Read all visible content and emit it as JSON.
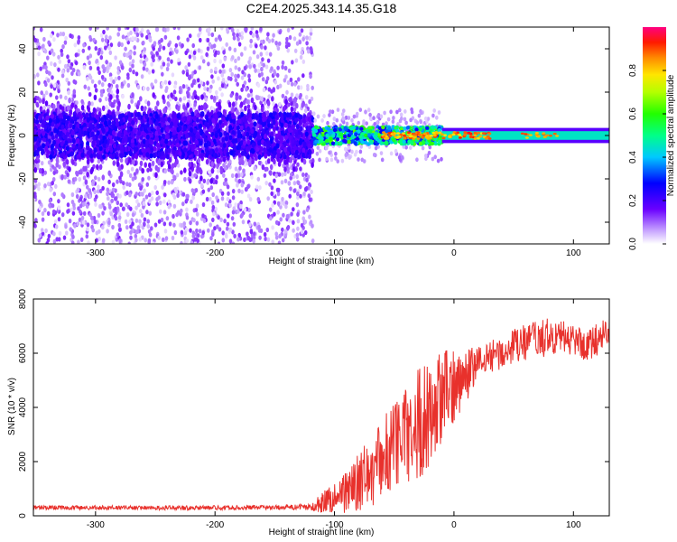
{
  "title": "C2E4.2025.343.14.35.G18",
  "chart_data": [
    {
      "type": "heatmap",
      "title": "C2E4.2025.343.14.35.G18",
      "xlabel": "Height of straight line (km)",
      "ylabel": "Frequency (Hz)",
      "xlim": [
        -352,
        130
      ],
      "ylim": [
        -50,
        50
      ],
      "xticks": [
        -300,
        -200,
        -100,
        0,
        100
      ],
      "yticks": [
        -40,
        -20,
        0,
        20,
        40
      ],
      "xtick_labels": [
        "-300",
        "-200",
        "-100",
        "0",
        "100"
      ],
      "ytick_labels": [
        "-40",
        "-20",
        "0",
        "20",
        "40"
      ],
      "colorbar": {
        "label": "Normalized spectral amplitude",
        "range": [
          0,
          1
        ],
        "ticks": [
          0.0,
          0.2,
          0.4,
          0.6,
          0.8
        ],
        "tick_labels": [
          "0.0",
          "0.2",
          "0.4",
          "0.6",
          "0.8"
        ],
        "colormap": "rainbow (white-violet-blue-cyan-green-yellow-red-magenta)"
      },
      "features": [
        {
          "name": "broad noisy band",
          "x_range": [
            -352,
            -118
          ],
          "center_freq": 0,
          "core_halfwidth": 10,
          "spread_halfwidth": 50,
          "dominant_amplitude": 0.2
        },
        {
          "name": "transition region",
          "x_range": [
            -118,
            -10
          ],
          "center_freq": 0,
          "core_halfwidth": 4,
          "dominant_amplitude": 0.5
        },
        {
          "name": "narrow carrier line",
          "x_range": [
            -10,
            130
          ],
          "center_freq": 0,
          "core_halfwidth": 2,
          "dominant_amplitude": 0.45
        }
      ]
    },
    {
      "type": "line",
      "xlabel": "Height of straight line (km)",
      "ylabel": "SNR (10 * v/v)",
      "xlim": [
        -352,
        130
      ],
      "ylim": [
        0,
        8000
      ],
      "xticks": [
        -300,
        -200,
        -100,
        0,
        100
      ],
      "yticks": [
        0,
        2000,
        4000,
        6000,
        8000
      ],
      "xtick_labels": [
        "-300",
        "-200",
        "-100",
        "0",
        "100"
      ],
      "ytick_labels": [
        "0",
        "2000",
        "4000",
        "6000",
        "8000"
      ],
      "color": "#e8312c",
      "series": [
        {
          "name": "SNR",
          "x": [
            -350,
            -300,
            -250,
            -200,
            -150,
            -120,
            -110,
            -100,
            -90,
            -80,
            -70,
            -60,
            -50,
            -40,
            -30,
            -20,
            -10,
            0,
            10,
            20,
            30,
            40,
            50,
            60,
            70,
            80,
            90,
            100,
            110,
            120,
            130
          ],
          "values": [
            300,
            300,
            290,
            300,
            310,
            320,
            500,
            700,
            900,
            1200,
            1600,
            2100,
            2600,
            3000,
            3400,
            3800,
            4300,
            4800,
            5200,
            5600,
            5900,
            6000,
            6200,
            6400,
            6500,
            6600,
            6600,
            6500,
            6300,
            6500,
            6900
          ],
          "noise_halfwidth": [
            80,
            80,
            80,
            80,
            80,
            120,
            400,
            600,
            800,
            1100,
            1300,
            1500,
            1700,
            1900,
            2100,
            2000,
            1800,
            1400,
            1000,
            700,
            600,
            600,
            700,
            700,
            700,
            700,
            600,
            600,
            600,
            600,
            500
          ]
        }
      ]
    }
  ]
}
